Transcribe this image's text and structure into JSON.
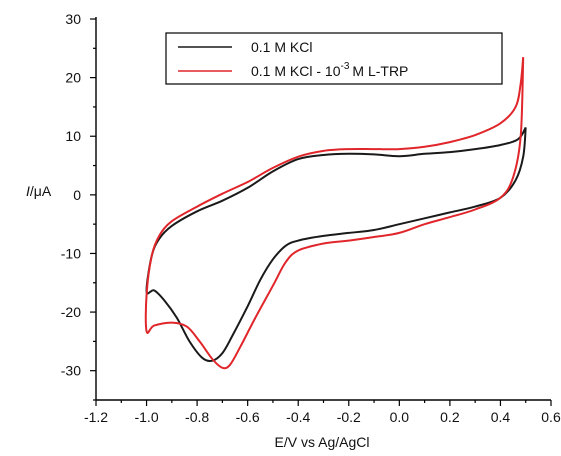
{
  "chart_data": {
    "type": "line",
    "xlabel": "E/V vs Ag/AgCl",
    "ylabel": "I/μA",
    "ylabel_italic": "I",
    "ylabel_unit": "/μA",
    "xlim": [
      -1.2,
      0.6
    ],
    "ylim": [
      -35,
      30
    ],
    "x_ticks": [
      -1.2,
      -1.0,
      -0.8,
      -0.6,
      -0.4,
      -0.2,
      0.0,
      0.2,
      0.4,
      0.6
    ],
    "x_tick_labels": [
      "-1.2",
      "-1.0",
      "-0.8",
      "-0.6",
      "-0.4",
      "-0.2",
      "0.0",
      "0.2",
      "0.4",
      "0.6"
    ],
    "y_ticks": [
      -30,
      -20,
      -10,
      0,
      10,
      20,
      30
    ],
    "y_tick_labels": [
      "-30",
      "-20",
      "-10",
      "0",
      "10",
      "20",
      "30"
    ],
    "grid": false,
    "legend": {
      "placement": "top-right",
      "entries": [
        {
          "label": "0.1 M KCl",
          "color": "#1a1a1a"
        },
        {
          "label_prefix": "0.1 M KCl - 10",
          "label_sup": "-3",
          "label_suffix": "M L-TRP",
          "color": "#e0262b"
        }
      ]
    },
    "series": [
      {
        "name": "0.1 M KCl",
        "color": "#1a1a1a",
        "points": [
          [
            0.5,
            11.5
          ],
          [
            0.47,
            9.5
          ],
          [
            0.4,
            8.5
          ],
          [
            0.3,
            7.8
          ],
          [
            0.2,
            7.3
          ],
          [
            0.1,
            7.0
          ],
          [
            0.0,
            6.6
          ],
          [
            -0.1,
            6.9
          ],
          [
            -0.2,
            7.0
          ],
          [
            -0.3,
            6.8
          ],
          [
            -0.4,
            6.1
          ],
          [
            -0.5,
            4.0
          ],
          [
            -0.6,
            1.2
          ],
          [
            -0.7,
            -1.0
          ],
          [
            -0.8,
            -2.8
          ],
          [
            -0.9,
            -5.3
          ],
          [
            -0.95,
            -7.5
          ],
          [
            -0.98,
            -10.5
          ],
          [
            -1.0,
            -16.5
          ],
          [
            -0.97,
            -16.3
          ],
          [
            -0.93,
            -18.0
          ],
          [
            -0.88,
            -21.0
          ],
          [
            -0.83,
            -25.0
          ],
          [
            -0.78,
            -27.8
          ],
          [
            -0.74,
            -28.3
          ],
          [
            -0.7,
            -27.0
          ],
          [
            -0.66,
            -24.0
          ],
          [
            -0.6,
            -19.0
          ],
          [
            -0.55,
            -14.5
          ],
          [
            -0.5,
            -11.0
          ],
          [
            -0.45,
            -8.7
          ],
          [
            -0.4,
            -7.8
          ],
          [
            -0.3,
            -7.0
          ],
          [
            -0.2,
            -6.5
          ],
          [
            -0.1,
            -6.0
          ],
          [
            0.0,
            -5.0
          ],
          [
            0.1,
            -4.0
          ],
          [
            0.2,
            -3.0
          ],
          [
            0.3,
            -2.0
          ],
          [
            0.4,
            -0.5
          ],
          [
            0.46,
            2.5
          ],
          [
            0.49,
            6.5
          ],
          [
            0.5,
            11.5
          ]
        ]
      },
      {
        "name": "0.1 M KCl - 10^-3 M L-TRP",
        "color": "#e0262b",
        "points": [
          [
            0.49,
            23.5
          ],
          [
            0.48,
            19.0
          ],
          [
            0.46,
            15.0
          ],
          [
            0.4,
            12.2
          ],
          [
            0.3,
            10.2
          ],
          [
            0.2,
            9.0
          ],
          [
            0.1,
            8.2
          ],
          [
            0.0,
            7.8
          ],
          [
            -0.1,
            7.8
          ],
          [
            -0.2,
            7.8
          ],
          [
            -0.3,
            7.5
          ],
          [
            -0.4,
            6.5
          ],
          [
            -0.5,
            4.6
          ],
          [
            -0.6,
            2.2
          ],
          [
            -0.7,
            0.2
          ],
          [
            -0.8,
            -2.0
          ],
          [
            -0.9,
            -4.5
          ],
          [
            -0.95,
            -7.0
          ],
          [
            -0.98,
            -10.5
          ],
          [
            -1.0,
            -17.0
          ],
          [
            -1.0,
            -23.3
          ],
          [
            -0.97,
            -22.3
          ],
          [
            -0.9,
            -21.8
          ],
          [
            -0.84,
            -22.5
          ],
          [
            -0.79,
            -25.0
          ],
          [
            -0.74,
            -28.0
          ],
          [
            -0.7,
            -29.5
          ],
          [
            -0.67,
            -29.0
          ],
          [
            -0.63,
            -26.0
          ],
          [
            -0.57,
            -21.0
          ],
          [
            -0.5,
            -15.5
          ],
          [
            -0.45,
            -11.5
          ],
          [
            -0.4,
            -9.5
          ],
          [
            -0.3,
            -8.3
          ],
          [
            -0.2,
            -7.8
          ],
          [
            -0.1,
            -7.2
          ],
          [
            0.0,
            -6.5
          ],
          [
            0.1,
            -5.0
          ],
          [
            0.2,
            -3.8
          ],
          [
            0.3,
            -2.5
          ],
          [
            0.4,
            -0.5
          ],
          [
            0.45,
            3.0
          ],
          [
            0.48,
            10.0
          ],
          [
            0.49,
            23.5
          ]
        ]
      }
    ]
  }
}
